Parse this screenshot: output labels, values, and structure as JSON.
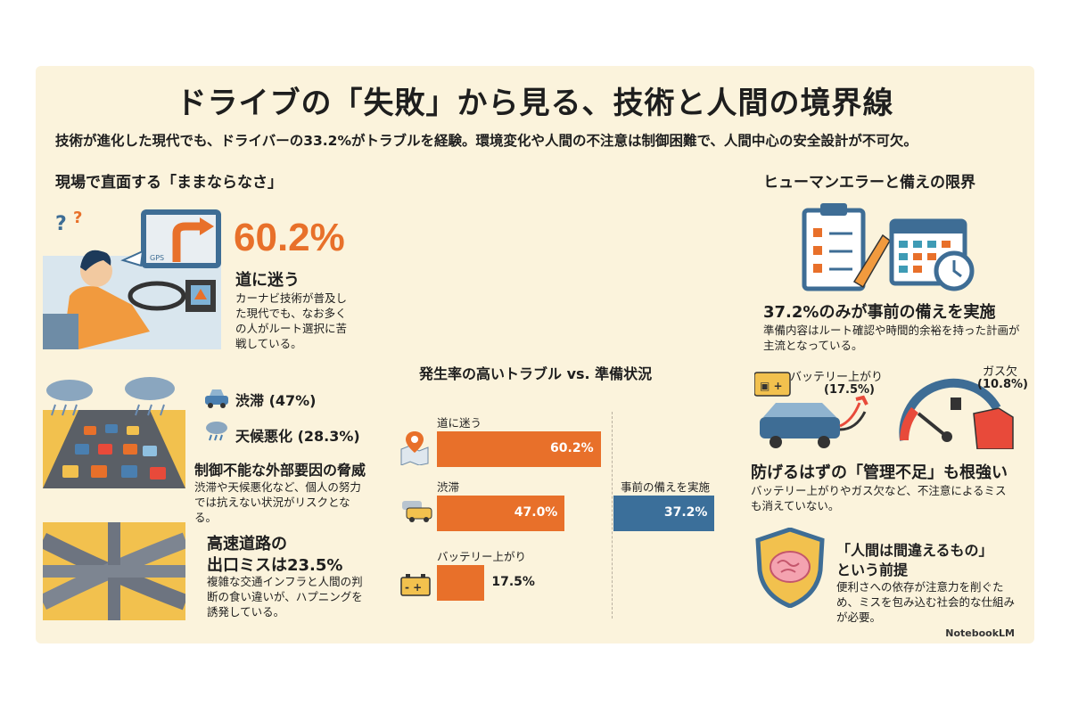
{
  "title": "ドライブの「失敗」から見る、技術と人間の境界線",
  "subtitle": "技術が進化した現代でも、ドライバーの33.2%がトラブルを経験。環境変化や人間の不注意は制御困難で、人間中心の安全設計が不可欠。",
  "left": {
    "heading": "現場で直面する「ままならなさ」",
    "gps_label": "GPS",
    "stat1": {
      "value": "60.2%",
      "label": "道に迷う",
      "desc": "カーナビ技術が普及した現代でも、なお多くの人がルート選択に苦戦している。"
    },
    "traffic_item": "渋滞 (47%)",
    "weather_item": "天候悪化 (28.3%)",
    "external": {
      "title": "制御不能な外部要因の脅威",
      "desc": "渋滞や天候悪化など、個人の努力では抗えない状況がリスクとなる。"
    },
    "highway": {
      "title1": "高速道路の",
      "title2": "出口ミスは23.5%",
      "desc": "複雑な交通インフラと人間の判断の食い違いが、ハプニングを誘発している。"
    }
  },
  "center": {
    "chart_title": "発生率の高いトラブル vs. 準備状況",
    "bar_labels": [
      "道に迷う",
      "渋滞",
      "バッテリー上がり"
    ],
    "bar_values_text": [
      "60.2%",
      "47.0%",
      "17.5%"
    ],
    "prep_label": "事前の備えを実施",
    "prep_value_text": "37.2%"
  },
  "right": {
    "heading": "ヒューマンエラーと備えの限界",
    "prep": {
      "title": "37.2%のみが事前の備えを実施",
      "desc": "準備内容はルート確認や時間的余裕を持った計画が主流となっている。"
    },
    "battery": {
      "label": "バッテリー上がり",
      "value": "(17.5%)"
    },
    "gas": {
      "label": "ガス欠",
      "value": "(10.8%)"
    },
    "mgmt": {
      "title": "防げるはずの「管理不足」も根強い",
      "desc": "バッテリー上がりやガス欠など、不注意によるミスも消えていない。"
    },
    "human": {
      "title1": "「人間は間違えるもの」",
      "title2": "という前提",
      "desc": "便利さへの依存が注意力を削ぐため、ミスを包み込む社会的な仕組みが必要。"
    }
  },
  "logo": "NotebookLM",
  "colors": {
    "orange": "#e8702a",
    "blue": "#3b6f9a",
    "panel": "#fbf3dc"
  },
  "chart_data": {
    "type": "bar",
    "title": "発生率の高いトラブル vs. 準備状況",
    "categories": [
      "道に迷う",
      "渋滞",
      "バッテリー上がり",
      "事前の備えを実施"
    ],
    "series": [
      {
        "values": [
          60.2,
          47.0,
          17.5,
          null
        ],
        "color": "#e8702a"
      },
      {
        "values": [
          null,
          null,
          null,
          37.2
        ],
        "color": "#3b6f9a"
      }
    ],
    "unit": "%",
    "grid": false
  }
}
